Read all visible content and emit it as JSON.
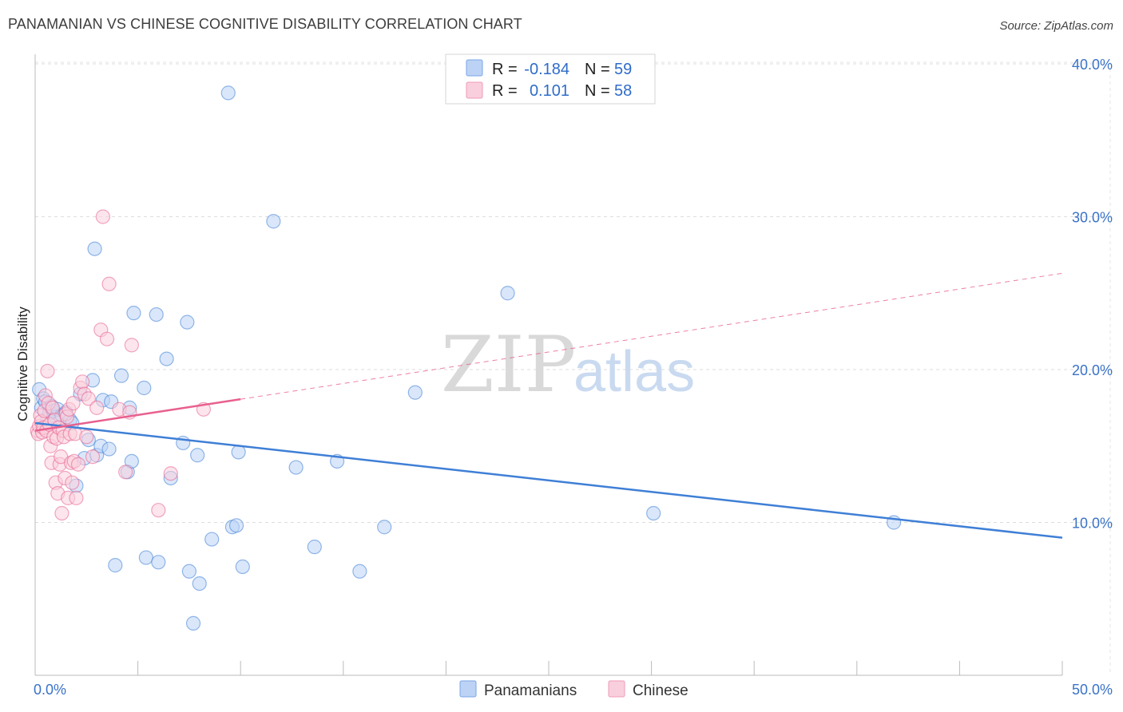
{
  "header": {
    "title": "PANAMANIAN VS CHINESE COGNITIVE DISABILITY CORRELATION CHART",
    "source": "Source: ZipAtlas.com"
  },
  "watermark": {
    "zip": "ZIP",
    "atlas": "atlas"
  },
  "legend": {
    "rows": [
      {
        "r_label": "R =",
        "r_value": "-0.184",
        "n_label": "N =",
        "n_value": "59",
        "color": "#7aa6e6",
        "fill": "#bcd3f5"
      },
      {
        "r_label": "R =",
        "r_value": "0.101",
        "n_label": "N =",
        "n_value": "58",
        "color": "#f09ab8",
        "fill": "#f9cfdd"
      }
    ]
  },
  "bottom_legend": [
    {
      "label": "Panamanians",
      "color": "#7aa6e6",
      "fill": "#bcd3f5"
    },
    {
      "label": "Chinese",
      "color": "#f09ab8",
      "fill": "#f9cfdd"
    }
  ],
  "chart_data": {
    "type": "scatter",
    "title": "PANAMANIAN VS CHINESE COGNITIVE DISABILITY CORRELATION CHART",
    "xlabel": "",
    "ylabel": "Cognitive Disability",
    "xlim": [
      0,
      50
    ],
    "ylim": [
      0,
      42
    ],
    "x_tick_labels": [
      "0.0%",
      "50.0%"
    ],
    "y_ticks": [
      10,
      20,
      30,
      40
    ],
    "y_tick_labels": [
      "10.0%",
      "20.0%",
      "30.0%",
      "40.0%"
    ],
    "grid": true,
    "series": [
      {
        "name": "Panamanians",
        "color": "#3f7fd6",
        "fill": "#bcd3f5",
        "r": -0.184,
        "n": 59,
        "trend": {
          "x": [
            0,
            50
          ],
          "y": [
            16.5,
            9.0
          ],
          "dashed_from": null
        },
        "points": [
          [
            0.2,
            18.7
          ],
          [
            0.3,
            17.5
          ],
          [
            0.4,
            18.1
          ],
          [
            0.5,
            17.9
          ],
          [
            0.6,
            16.8
          ],
          [
            0.7,
            17.2
          ],
          [
            0.8,
            17.6
          ],
          [
            0.9,
            17.3
          ],
          [
            1.0,
            16.9
          ],
          [
            1.1,
            17.4
          ],
          [
            1.3,
            17.0
          ],
          [
            1.5,
            17.2
          ],
          [
            1.7,
            16.7
          ],
          [
            1.8,
            16.5
          ],
          [
            2.0,
            12.4
          ],
          [
            2.2,
            18.4
          ],
          [
            2.4,
            14.2
          ],
          [
            2.6,
            15.4
          ],
          [
            2.8,
            19.3
          ],
          [
            2.9,
            27.9
          ],
          [
            3.0,
            14.4
          ],
          [
            3.2,
            15.0
          ],
          [
            3.3,
            18.0
          ],
          [
            3.6,
            14.8
          ],
          [
            3.7,
            17.9
          ],
          [
            3.9,
            7.2
          ],
          [
            4.2,
            19.6
          ],
          [
            4.5,
            13.3
          ],
          [
            4.6,
            17.5
          ],
          [
            4.7,
            14.0
          ],
          [
            4.8,
            23.7
          ],
          [
            5.3,
            18.8
          ],
          [
            5.4,
            7.7
          ],
          [
            5.9,
            23.6
          ],
          [
            6.0,
            7.4
          ],
          [
            6.4,
            20.7
          ],
          [
            6.6,
            12.9
          ],
          [
            7.2,
            15.2
          ],
          [
            7.4,
            23.1
          ],
          [
            7.5,
            6.8
          ],
          [
            7.9,
            14.4
          ],
          [
            8.0,
            6.0
          ],
          [
            7.7,
            3.4
          ],
          [
            8.6,
            8.9
          ],
          [
            9.4,
            38.1
          ],
          [
            9.6,
            9.7
          ],
          [
            9.8,
            9.8
          ],
          [
            9.9,
            14.6
          ],
          [
            10.1,
            7.1
          ],
          [
            11.6,
            29.7
          ],
          [
            12.7,
            13.6
          ],
          [
            13.6,
            8.4
          ],
          [
            14.7,
            14.0
          ],
          [
            15.8,
            6.8
          ],
          [
            17.0,
            9.7
          ],
          [
            18.5,
            18.5
          ],
          [
            23.0,
            25.0
          ],
          [
            30.1,
            10.6
          ],
          [
            41.8,
            10.0
          ]
        ]
      },
      {
        "name": "Chinese",
        "color": "#e8608e",
        "fill": "#f9cfdd",
        "r": 0.101,
        "n": 58,
        "trend": {
          "x": [
            0,
            50
          ],
          "y": [
            16.0,
            26.3
          ],
          "dashed_from": 10
        },
        "points": [
          [
            0.1,
            16.0
          ],
          [
            0.15,
            15.8
          ],
          [
            0.2,
            16.3
          ],
          [
            0.25,
            17.0
          ],
          [
            0.3,
            16.6
          ],
          [
            0.35,
            15.9
          ],
          [
            0.4,
            16.2
          ],
          [
            0.45,
            17.3
          ],
          [
            0.5,
            18.3
          ],
          [
            0.55,
            16.0
          ],
          [
            0.6,
            19.9
          ],
          [
            0.65,
            17.8
          ],
          [
            0.7,
            16.4
          ],
          [
            0.75,
            15.0
          ],
          [
            0.8,
            13.9
          ],
          [
            0.85,
            17.5
          ],
          [
            0.9,
            15.6
          ],
          [
            0.95,
            16.7
          ],
          [
            1.0,
            12.6
          ],
          [
            1.05,
            15.5
          ],
          [
            1.1,
            11.9
          ],
          [
            1.15,
            16.2
          ],
          [
            1.2,
            13.8
          ],
          [
            1.25,
            14.3
          ],
          [
            1.3,
            10.6
          ],
          [
            1.35,
            16.0
          ],
          [
            1.4,
            15.6
          ],
          [
            1.45,
            12.9
          ],
          [
            1.5,
            17.1
          ],
          [
            1.55,
            16.9
          ],
          [
            1.6,
            11.6
          ],
          [
            1.65,
            17.4
          ],
          [
            1.7,
            15.8
          ],
          [
            1.75,
            13.9
          ],
          [
            1.8,
            12.6
          ],
          [
            1.85,
            17.8
          ],
          [
            1.9,
            14.0
          ],
          [
            1.95,
            15.8
          ],
          [
            2.0,
            11.6
          ],
          [
            2.1,
            13.8
          ],
          [
            2.2,
            18.8
          ],
          [
            2.3,
            19.2
          ],
          [
            2.4,
            18.4
          ],
          [
            2.5,
            15.6
          ],
          [
            2.6,
            18.1
          ],
          [
            2.8,
            14.3
          ],
          [
            3.0,
            17.5
          ],
          [
            3.2,
            22.6
          ],
          [
            3.3,
            30.0
          ],
          [
            3.5,
            22.0
          ],
          [
            3.6,
            25.6
          ],
          [
            4.1,
            17.4
          ],
          [
            4.4,
            13.3
          ],
          [
            4.6,
            17.2
          ],
          [
            4.7,
            21.6
          ],
          [
            6.0,
            10.8
          ],
          [
            6.6,
            13.2
          ],
          [
            8.2,
            17.4
          ]
        ]
      }
    ]
  }
}
